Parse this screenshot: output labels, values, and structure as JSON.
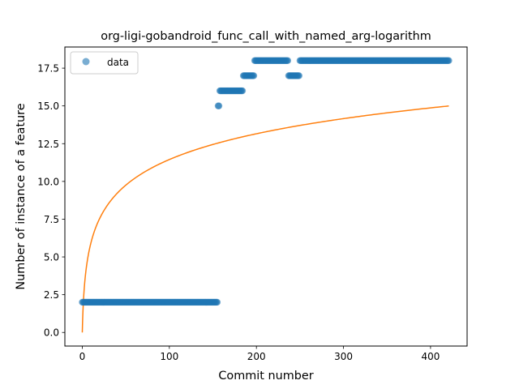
{
  "chart_data": {
    "type": "scatter",
    "title": "org-ligi-gobandroid_func_call_with_named_arg-logarithm",
    "xlabel": "Commit number",
    "ylabel": "Number of instance of a feature",
    "xlim": [
      -20,
      442
    ],
    "ylim": [
      -0.9,
      18.9
    ],
    "x_ticks": [
      0,
      100,
      200,
      300,
      400
    ],
    "y_ticks": [
      0.0,
      2.5,
      5.0,
      7.5,
      10.0,
      12.5,
      15.0,
      17.5
    ],
    "x_tick_labels": [
      "0",
      "100",
      "200",
      "300",
      "400"
    ],
    "y_tick_labels": [
      "0.0",
      "2.5",
      "5.0",
      "7.5",
      "10.0",
      "12.5",
      "15.0",
      "17.5"
    ],
    "legend": {
      "position": "top-left",
      "entries": [
        "data"
      ]
    },
    "grid": false,
    "series": [
      {
        "name": "data",
        "kind": "points",
        "color": "#1f77b4",
        "segments": [
          {
            "x_start": 0,
            "x_end": 155,
            "y": 2
          },
          {
            "x_start": 156,
            "x_end": 157,
            "y": 15
          },
          {
            "x_start": 158,
            "x_end": 184,
            "y": 16
          },
          {
            "x_start": 185,
            "x_end": 197,
            "y": 17
          },
          {
            "x_start": 198,
            "x_end": 236,
            "y": 18
          },
          {
            "x_start": 237,
            "x_end": 249,
            "y": 17
          },
          {
            "x_start": 250,
            "x_end": 421,
            "y": 18
          }
        ]
      },
      {
        "kind": "fit-line",
        "color": "#ff7f0e",
        "model": "y = 2.4807 * ln(x + 1)",
        "x_range": [
          0,
          421
        ]
      }
    ]
  }
}
